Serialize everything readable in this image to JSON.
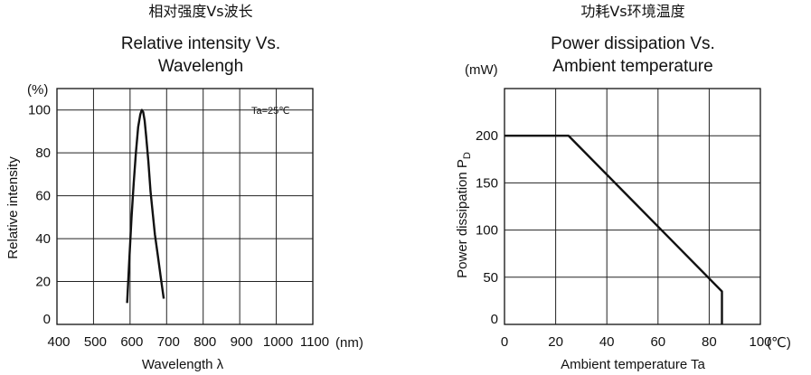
{
  "chart_data": [
    {
      "type": "line",
      "title_cn": "相对强度Vs波长",
      "title_line1": "Relative intensity Vs.",
      "title_line2": "Wavelengh",
      "xlabel": "Wavelength  λ",
      "ylabel": "Relative intensity",
      "y_unit": "(%)",
      "x_unit": "(nm)",
      "annotation": "Ta=25℃",
      "xlim": [
        400,
        1100
      ],
      "ylim": [
        0,
        110
      ],
      "x_ticks": [
        "400",
        "500",
        "600",
        "700",
        "800",
        "900",
        "1000",
        "1100"
      ],
      "y_ticks": [
        "0",
        "20",
        "40",
        "60",
        "80",
        "100"
      ],
      "grid": true,
      "series": [
        {
          "x": [
            592,
            598,
            604,
            610,
            616,
            622,
            628,
            632,
            636,
            640,
            644,
            650,
            656,
            662,
            668,
            676,
            684,
            692
          ],
          "y": [
            10,
            30,
            50,
            66,
            80,
            92,
            98,
            100,
            99,
            95,
            88,
            76,
            62,
            52,
            42,
            32,
            22,
            12
          ]
        }
      ]
    },
    {
      "type": "line",
      "title_cn": "功耗Vs环境温度",
      "title_line1": "Power dissipation Vs.",
      "title_line2": "Ambient temperature",
      "xlabel": "Ambient temperature Ta",
      "ylabel": "Power dissipation P",
      "ylabel_sub": "D",
      "y_unit": "(mW)",
      "x_unit": "(℃)",
      "xlim": [
        0,
        100
      ],
      "ylim": [
        0,
        250
      ],
      "x_ticks": [
        "0",
        "20",
        "40",
        "60",
        "80",
        "100"
      ],
      "y_ticks": [
        "0",
        "50",
        "100",
        "150",
        "200"
      ],
      "grid": true,
      "series": [
        {
          "x": [
            0,
            25,
            85,
            85
          ],
          "y": [
            200,
            200,
            35,
            0
          ]
        }
      ]
    }
  ]
}
